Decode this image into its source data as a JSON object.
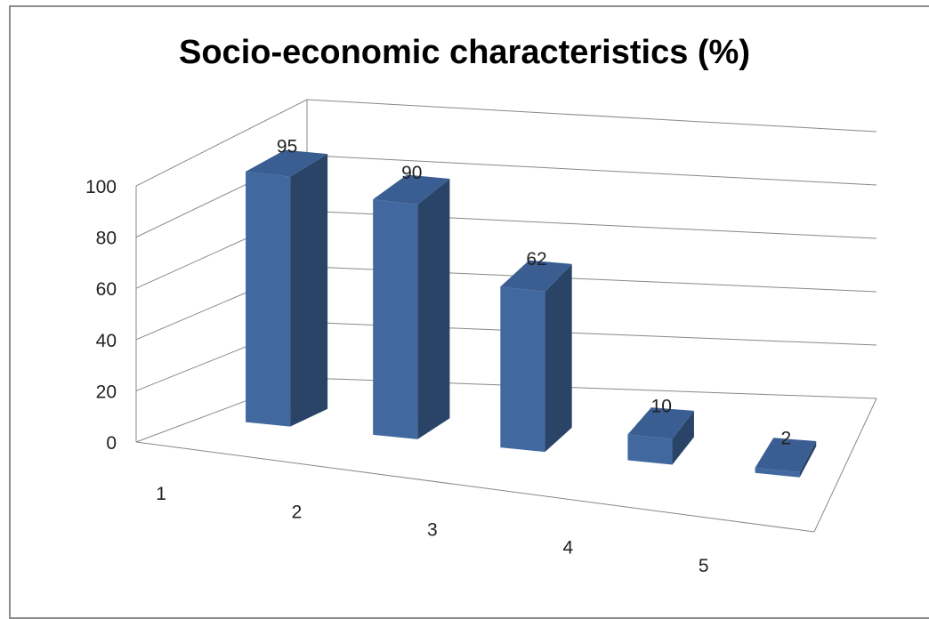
{
  "chart_data": {
    "type": "bar",
    "style": "3d-column",
    "title": "Socio-economic characteristics (%)",
    "xlabel": "",
    "ylabel": "",
    "categories": [
      "1",
      "2",
      "3",
      "4",
      "5"
    ],
    "values": [
      95,
      90,
      62,
      10,
      2
    ],
    "data_labels": [
      "95",
      "90",
      "62",
      "10",
      "2"
    ],
    "yticks": [
      "0",
      "20",
      "40",
      "60",
      "80",
      "100"
    ],
    "ylim": [
      0,
      100
    ],
    "grid": true,
    "legend": "none",
    "colors": {
      "bar_front": "#4169a0",
      "bar_side": "#2a4468",
      "bar_top": "#3a5e92",
      "grid": "#888888"
    }
  }
}
